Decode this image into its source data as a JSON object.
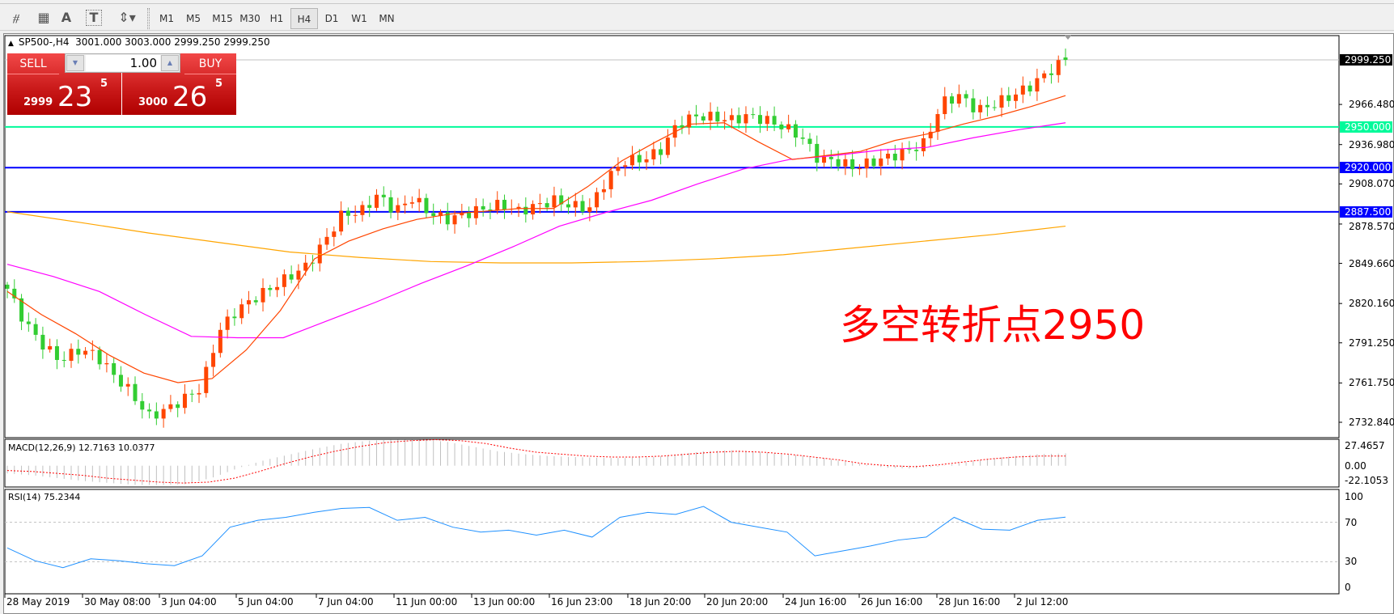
{
  "toolbar": {
    "tools": [
      {
        "name": "fibonacci-expansion",
        "glyph": "⧣"
      },
      {
        "name": "fibonacci-fan",
        "glyph": "▦"
      },
      {
        "name": "text",
        "glyph": "A"
      },
      {
        "name": "text-label",
        "glyph": "T"
      },
      {
        "name": "arrows",
        "glyph": "⇕▾"
      }
    ],
    "timeframes": [
      "M1",
      "M5",
      "M15",
      "M30",
      "H1",
      "H4",
      "D1",
      "W1",
      "MN"
    ],
    "active_timeframe": "H4"
  },
  "chart": {
    "title": "SP500-,H4  3001.000 3003.000 2999.250 2999.250",
    "trade_panel": {
      "sell_label": "SELL",
      "buy_label": "BUY",
      "lot": "1.00",
      "sell_price": {
        "small": "2999",
        "big": "23",
        "sup": "5"
      },
      "buy_price": {
        "small": "3000",
        "big": "26",
        "sup": "5"
      }
    },
    "annotation": "多空转折点2950",
    "colors": {
      "bull": "#ff4500",
      "bear": "#32cd32",
      "ma_fast": "#ff4500",
      "ma_mid": "#ff00ff",
      "ma_slow": "#ffa500",
      "level_green": "#00fa9a",
      "level_blue": "#0000ff",
      "macd_hist": "#c0c0c0",
      "macd_signal": "#ff0000",
      "rsi": "#1e90ff",
      "annotation": "#ff0000"
    }
  },
  "chart_data": [
    {
      "type": "candlestick",
      "symbol": "SP500-",
      "timeframe": "H4",
      "ohlc_last": {
        "open": 3001.0,
        "high": 3003.0,
        "low": 2999.25,
        "close": 2999.25
      },
      "closes": [
        2831,
        2806,
        2790,
        2778,
        2786,
        2783,
        2768,
        2755,
        2737,
        2742,
        2750,
        2758,
        2800,
        2815,
        2824,
        2832,
        2840,
        2848,
        2866,
        2886,
        2887,
        2900,
        2888,
        2898,
        2886,
        2882,
        2886,
        2890,
        2893,
        2888,
        2892,
        2896,
        2892,
        2890,
        2912,
        2925,
        2926,
        2932,
        2952,
        2958,
        2957,
        2955,
        2958,
        2955,
        2950,
        2943,
        2926,
        2925,
        2920,
        2924,
        2928,
        2932,
        2938,
        2968,
        2973,
        2962,
        2967,
        2973,
        2980,
        2990,
        2999.25
      ],
      "ma_fast": [
        2829,
        2812,
        2798,
        2782,
        2769,
        2762,
        2765,
        2786,
        2815,
        2853,
        2866,
        2875,
        2882,
        2886,
        2888,
        2890,
        2890,
        2906,
        2925,
        2939,
        2952,
        2953,
        2939,
        2926,
        2929,
        2932,
        2940,
        2945,
        2952,
        2958,
        2965,
        2973
      ],
      "ma_mid": [
        2849,
        2840,
        2829,
        2812,
        2796,
        2795,
        2795,
        2808,
        2821,
        2835,
        2848,
        2862,
        2877,
        2887,
        2896,
        2908,
        2919,
        2926,
        2929,
        2933,
        2935,
        2942,
        2948,
        2953
      ],
      "ma_slow": [
        2887.6,
        2880,
        2872,
        2865,
        2858,
        2854,
        2851,
        2850,
        2850,
        2851,
        2853,
        2856,
        2861,
        2866,
        2871,
        2877
      ],
      "levels": [
        2999.25,
        2950.0,
        2920.0,
        2887.5
      ],
      "y_ticks": [
        "2966.480",
        "2936.980",
        "2908.070",
        "2878.570",
        "2849.660",
        "2820.160",
        "2791.250",
        "2761.750",
        "2732.840"
      ],
      "level_labels": {
        "bid": "2999.250",
        "green": "2950.000",
        "blue1": "2920.000",
        "blue2": "2887.500"
      },
      "ylim": [
        2732.84,
        2999.25
      ],
      "x_ticks": [
        "28 May 2019",
        "30 May 08:00",
        "3 Jun 04:00",
        "5 Jun 04:00",
        "7 Jun 04:00",
        "11 Jun 00:00",
        "13 Jun 00:00",
        "16 Jun 23:00",
        "18 Jun 20:00",
        "20 Jun 20:00",
        "24 Jun 16:00",
        "26 Jun 16:00",
        "28 Jun 16:00",
        "2 Jul 12:00"
      ]
    },
    {
      "type": "bar",
      "title": "MACD(12,26,9) 12.7163 10.0377",
      "y_ticks": [
        "27.4657",
        "0.00",
        "-22.1053"
      ],
      "ylim": [
        -22.1053,
        27.4657
      ],
      "histogram": [
        -8,
        -10,
        -13,
        -16,
        -18,
        -20,
        -20,
        -19,
        -12,
        -2,
        6,
        12,
        18,
        23,
        26,
        27,
        27,
        25,
        20,
        15,
        12,
        10,
        9,
        8,
        8,
        9,
        12,
        15,
        16,
        15,
        12,
        10,
        6,
        2,
        -2,
        -3,
        -1,
        3,
        7,
        10,
        12,
        12.7163
      ],
      "signal": [
        -5,
        -6,
        -8,
        -10,
        -13,
        -15,
        -17,
        -18,
        -17,
        -13,
        -6,
        2,
        9,
        15,
        20,
        24,
        26,
        27,
        26,
        23,
        18,
        14,
        12,
        10,
        9,
        9,
        10,
        12,
        14,
        15,
        14,
        12,
        9,
        6,
        2,
        0,
        -1,
        1,
        4,
        7,
        9,
        10,
        10.0377
      ]
    },
    {
      "type": "line",
      "title": "RSI(14) 75.2344",
      "y_ticks": [
        "100",
        "70",
        "30",
        "0"
      ],
      "ylim": [
        0,
        100
      ],
      "levels": [
        70,
        30
      ],
      "values": [
        44,
        31,
        24,
        33,
        31,
        28,
        26,
        36,
        65,
        72,
        75,
        80,
        84,
        85,
        72,
        75,
        65,
        60,
        62,
        57,
        62,
        55,
        75,
        80,
        78,
        86,
        70,
        65,
        60,
        36,
        41,
        46,
        52,
        55,
        75,
        63,
        62,
        72,
        75.2344
      ]
    }
  ]
}
